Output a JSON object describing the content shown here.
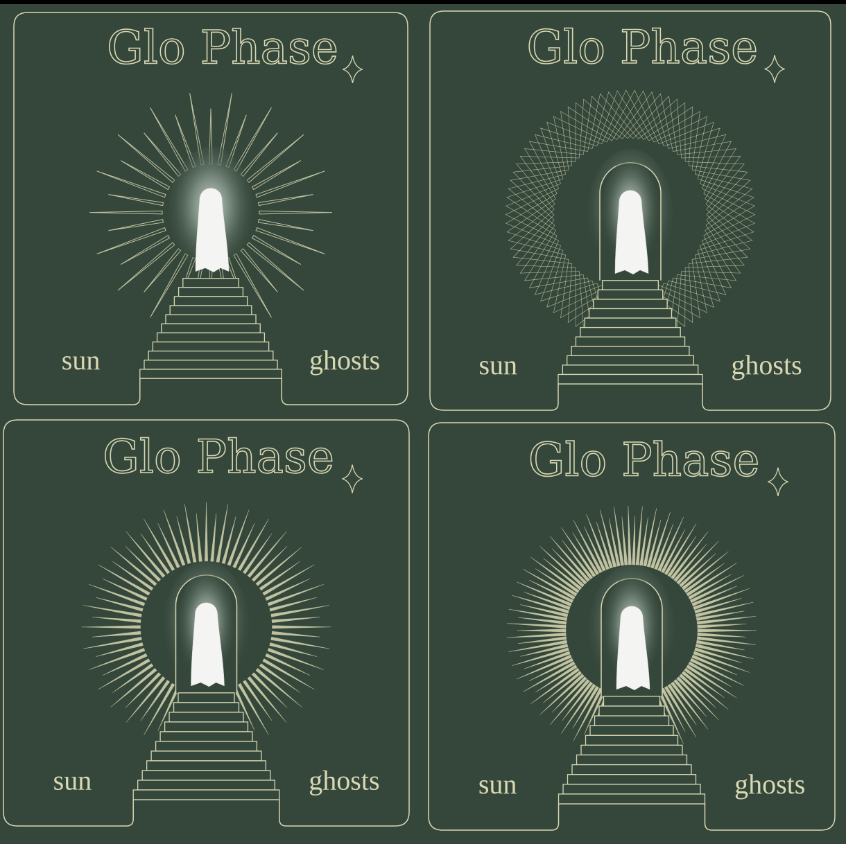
{
  "panels": [
    {
      "title": "Glo Phase",
      "left": "sun",
      "right": "ghosts"
    },
    {
      "title": "Glo Phase",
      "left": "sun",
      "right": "ghosts"
    },
    {
      "title": "Glo Phase",
      "left": "sun",
      "right": "ghosts"
    },
    {
      "title": "Glo Phase",
      "left": "sun",
      "right": "ghosts"
    }
  ]
}
